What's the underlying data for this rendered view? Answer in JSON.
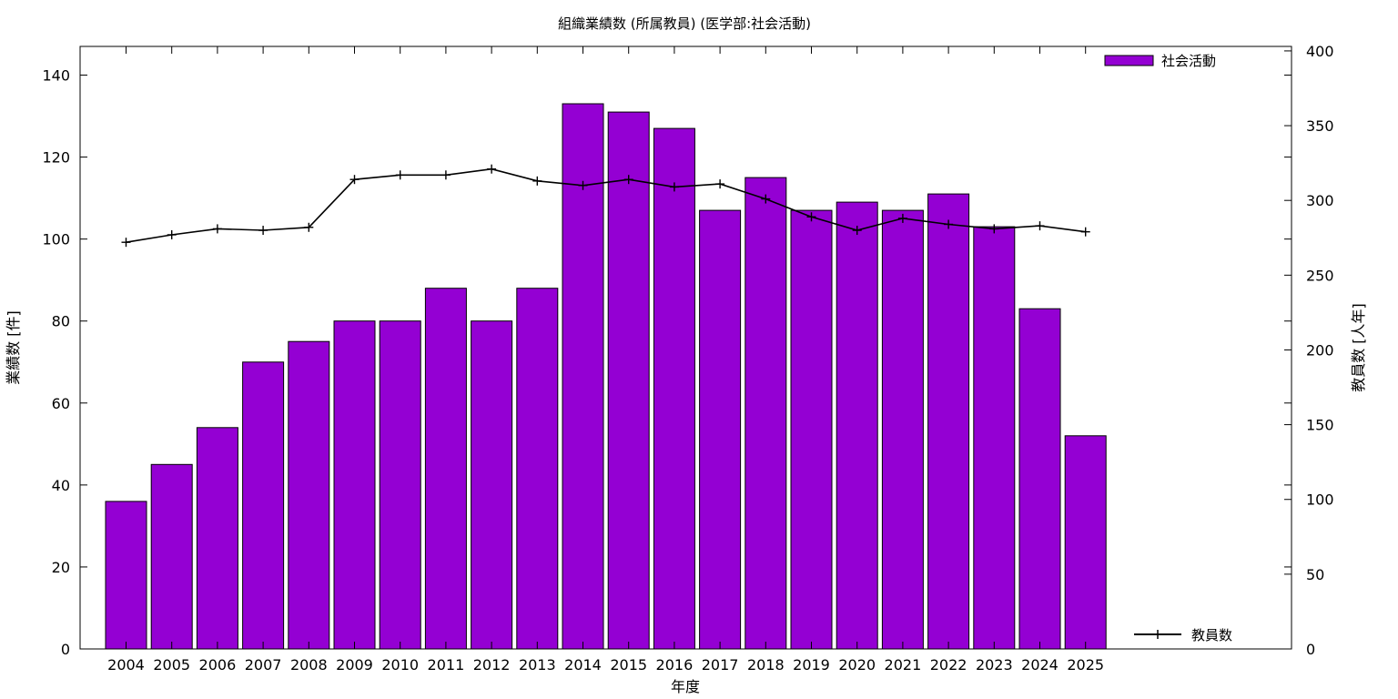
{
  "chart_data": {
    "type": "bar",
    "title": "組織業績数 (所属教員) (医学部:社会活動)",
    "xlabel": "年度",
    "ylabel": "業績数 [件]",
    "y2label": "教員数 [人年]",
    "categories": [
      "2004",
      "2005",
      "2006",
      "2007",
      "2008",
      "2009",
      "2010",
      "2011",
      "2012",
      "2013",
      "2014",
      "2015",
      "2016",
      "2017",
      "2018",
      "2019",
      "2020",
      "2021",
      "2022",
      "2023",
      "2024",
      "2025"
    ],
    "series": [
      {
        "name": "社会活動",
        "type": "bar",
        "axis": "left",
        "color": "#9400d3",
        "values": [
          36,
          45,
          54,
          70,
          75,
          80,
          80,
          88,
          80,
          88,
          133,
          131,
          127,
          107,
          115,
          107,
          109,
          107,
          111,
          103,
          83,
          52
        ]
      },
      {
        "name": "教員数",
        "type": "line",
        "axis": "right",
        "color": "#000000",
        "marker": "plus",
        "values": [
          272,
          277,
          281,
          280,
          282,
          314,
          317,
          317,
          321,
          313,
          310,
          314,
          309,
          311,
          301,
          289,
          280,
          288,
          284,
          281,
          283,
          279
        ]
      }
    ],
    "ylim": [
      0,
      147
    ],
    "yticks": [
      0,
      20,
      40,
      60,
      80,
      100,
      120,
      140
    ],
    "y2lim": [
      0,
      403
    ],
    "y2ticks": [
      0,
      50,
      100,
      150,
      200,
      250,
      300,
      350,
      400
    ],
    "grid": false,
    "legend": {
      "bar_position": "top-right",
      "line_position": "bottom-right"
    }
  }
}
